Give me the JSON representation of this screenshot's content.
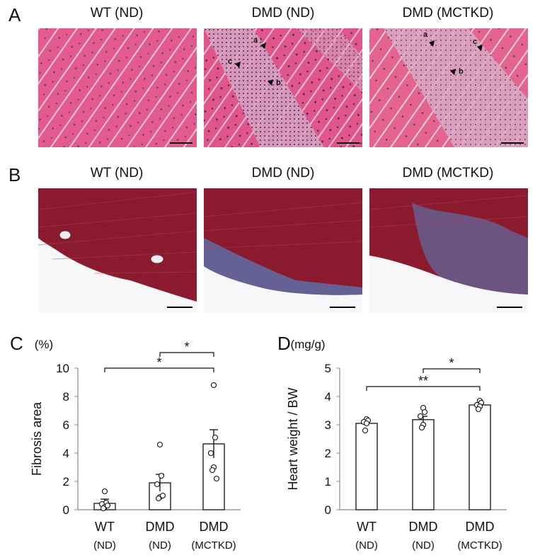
{
  "panels": {
    "A": {
      "letter": "A",
      "titles": [
        "WT (ND)",
        "DMD (ND)",
        "DMD (MCTKD)"
      ],
      "annotations": {
        "dmd_nd": [
          "a",
          "b",
          "c"
        ],
        "dmd_mctkd": [
          "a",
          "b",
          "c"
        ]
      },
      "stain_colors": {
        "tissue": "#e0568a",
        "nuclei": "#3a2a5a",
        "fibrotic": "#d7a3c0"
      }
    },
    "B": {
      "letter": "B",
      "titles": [
        "WT (ND)",
        "DMD (ND)",
        "DMD (MCTKD)"
      ],
      "stain_colors": {
        "muscle": "#8a1a2e",
        "fibrosis": "#5a7ab8"
      }
    },
    "C": {
      "letter": "C"
    },
    "D": {
      "letter": "D"
    }
  },
  "chart_data": [
    {
      "type": "bar",
      "panel": "C",
      "unit": "(%)",
      "ylabel": "Fibrosis area",
      "ylim": [
        0,
        10
      ],
      "yticks": [
        "0",
        "2",
        "4",
        "6",
        "8",
        "10"
      ],
      "categories": [
        {
          "line1": "WT",
          "line2": "(ND)"
        },
        {
          "line1": "DMD",
          "line2": "(ND)"
        },
        {
          "line1": "DMD",
          "line2": "(MCTKD)"
        }
      ],
      "values": [
        0.45,
        1.9,
        4.65
      ],
      "sem": [
        0.3,
        0.6,
        1.0
      ],
      "points": [
        [
          1.3,
          0.5,
          0.4,
          0.2,
          0.1,
          0.3
        ],
        [
          4.6,
          2.4,
          1.8,
          0.9,
          0.8,
          1.0
        ],
        [
          8.8,
          5.1,
          4.0,
          3.0,
          2.8,
          2.2
        ]
      ],
      "significance": [
        {
          "from": 1,
          "to": 2,
          "label": "*"
        },
        {
          "from": 0,
          "to": 2,
          "label": "*"
        }
      ]
    },
    {
      "type": "bar",
      "panel": "D",
      "unit": "(mg/g)",
      "ylabel": "Heart weight / BW",
      "ylim": [
        0,
        5
      ],
      "yticks": [
        "0",
        "1",
        "2",
        "3",
        "4",
        "5"
      ],
      "categories": [
        {
          "line1": "WT",
          "line2": "(ND)"
        },
        {
          "line1": "DMD",
          "line2": "(ND)"
        },
        {
          "line1": "DMD",
          "line2": "(MCTKD)"
        }
      ],
      "values": [
        3.05,
        3.18,
        3.7
      ],
      "sem": [
        0.1,
        0.12,
        0.08
      ],
      "points": [
        [
          3.2,
          3.15,
          3.1,
          3.05,
          2.8
        ],
        [
          3.6,
          3.45,
          3.3,
          3.0,
          2.9
        ],
        [
          3.85,
          3.78,
          3.7,
          3.65,
          3.55
        ]
      ],
      "significance": [
        {
          "from": 1,
          "to": 2,
          "label": "*"
        },
        {
          "from": 0,
          "to": 2,
          "label": "**"
        }
      ]
    }
  ]
}
